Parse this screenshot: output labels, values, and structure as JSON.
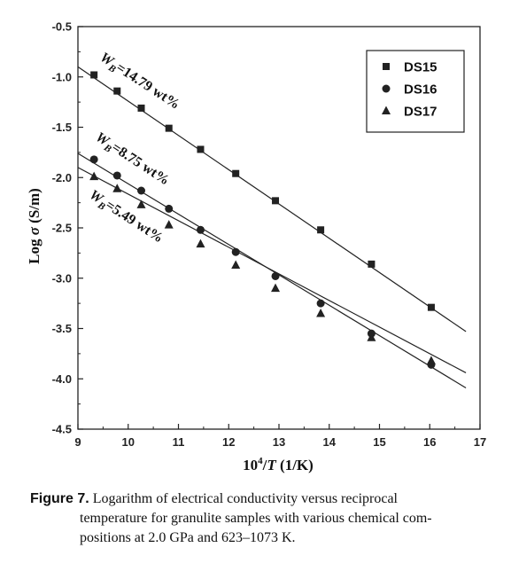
{
  "chart_data": {
    "type": "scatter",
    "xlabel_main": "10",
    "xlabel_sup": "4",
    "xlabel_sep": "/",
    "xlabel_var": "T",
    "xlabel_unit": " (1/K)",
    "ylabel_main": "Log ",
    "ylabel_var": "σ",
    "ylabel_unit": " (S/m)",
    "xlim": [
      9,
      17
    ],
    "ylim": [
      -4.5,
      -0.5
    ],
    "x_ticks": [
      9,
      10,
      11,
      12,
      13,
      14,
      15,
      16,
      17
    ],
    "x_tick_labels": [
      "9",
      "10",
      "11",
      "12",
      "13",
      "14",
      "15",
      "16",
      "17"
    ],
    "y_ticks": [
      -0.5,
      -1.0,
      -1.5,
      -2.0,
      -2.5,
      -3.0,
      -3.5,
      -4.0,
      -4.5
    ],
    "y_tick_labels": [
      "-0.5",
      "-1.0",
      "-1.5",
      "-2.0",
      "-2.5",
      "-3.0",
      "-3.5",
      "-4.0",
      "-4.5"
    ],
    "grid": false,
    "legend_position": "top-right",
    "series": [
      {
        "name": "DS15",
        "marker": "square",
        "x": [
          9.32,
          9.78,
          10.26,
          10.81,
          11.44,
          12.14,
          12.93,
          13.83,
          14.84,
          16.03
        ],
        "y": [
          -0.98,
          -1.14,
          -1.31,
          -1.51,
          -1.72,
          -1.96,
          -2.23,
          -2.52,
          -2.86,
          -3.29
        ],
        "fit_x": [
          9.0,
          16.72
        ],
        "fit_y": [
          -0.9,
          -3.53
        ]
      },
      {
        "name": "DS16",
        "marker": "circle",
        "x": [
          9.32,
          9.78,
          10.26,
          10.81,
          11.44,
          12.14,
          12.93,
          13.83,
          14.84,
          16.03
        ],
        "y": [
          -1.82,
          -1.98,
          -2.13,
          -2.31,
          -2.52,
          -2.74,
          -2.98,
          -3.25,
          -3.55,
          -3.86
        ],
        "fit_x": [
          9.0,
          16.72
        ],
        "fit_y": [
          -1.76,
          -4.09
        ]
      },
      {
        "name": "DS17",
        "marker": "triangle",
        "x": [
          9.32,
          9.78,
          10.26,
          10.81,
          11.44,
          12.14,
          12.93,
          13.83,
          14.84,
          16.03
        ],
        "y": [
          -1.99,
          -2.11,
          -2.27,
          -2.47,
          -2.66,
          -2.87,
          -3.1,
          -3.35,
          -3.59,
          -3.82
        ],
        "fit_x": [
          9.0,
          16.72
        ],
        "fit_y": [
          -1.9,
          -3.94
        ]
      }
    ],
    "annotations": [
      {
        "base": "W",
        "sub": "B",
        "rest": "=14.79 wt%",
        "series": "DS15"
      },
      {
        "base": "W",
        "sub": "B",
        "rest": "=8.75 wt%",
        "series": "DS16"
      },
      {
        "base": "W",
        "sub": "B",
        "rest": "=5.49 wt%",
        "series": "DS17"
      }
    ]
  },
  "caption": {
    "label": "Figure 7.",
    "line1": " Logarithm of electrical conductivity versus reciprocal",
    "line2": "temperature for granulite samples with various chemical com-",
    "line3": "positions at 2.0 GPa and 623–1073 K."
  }
}
